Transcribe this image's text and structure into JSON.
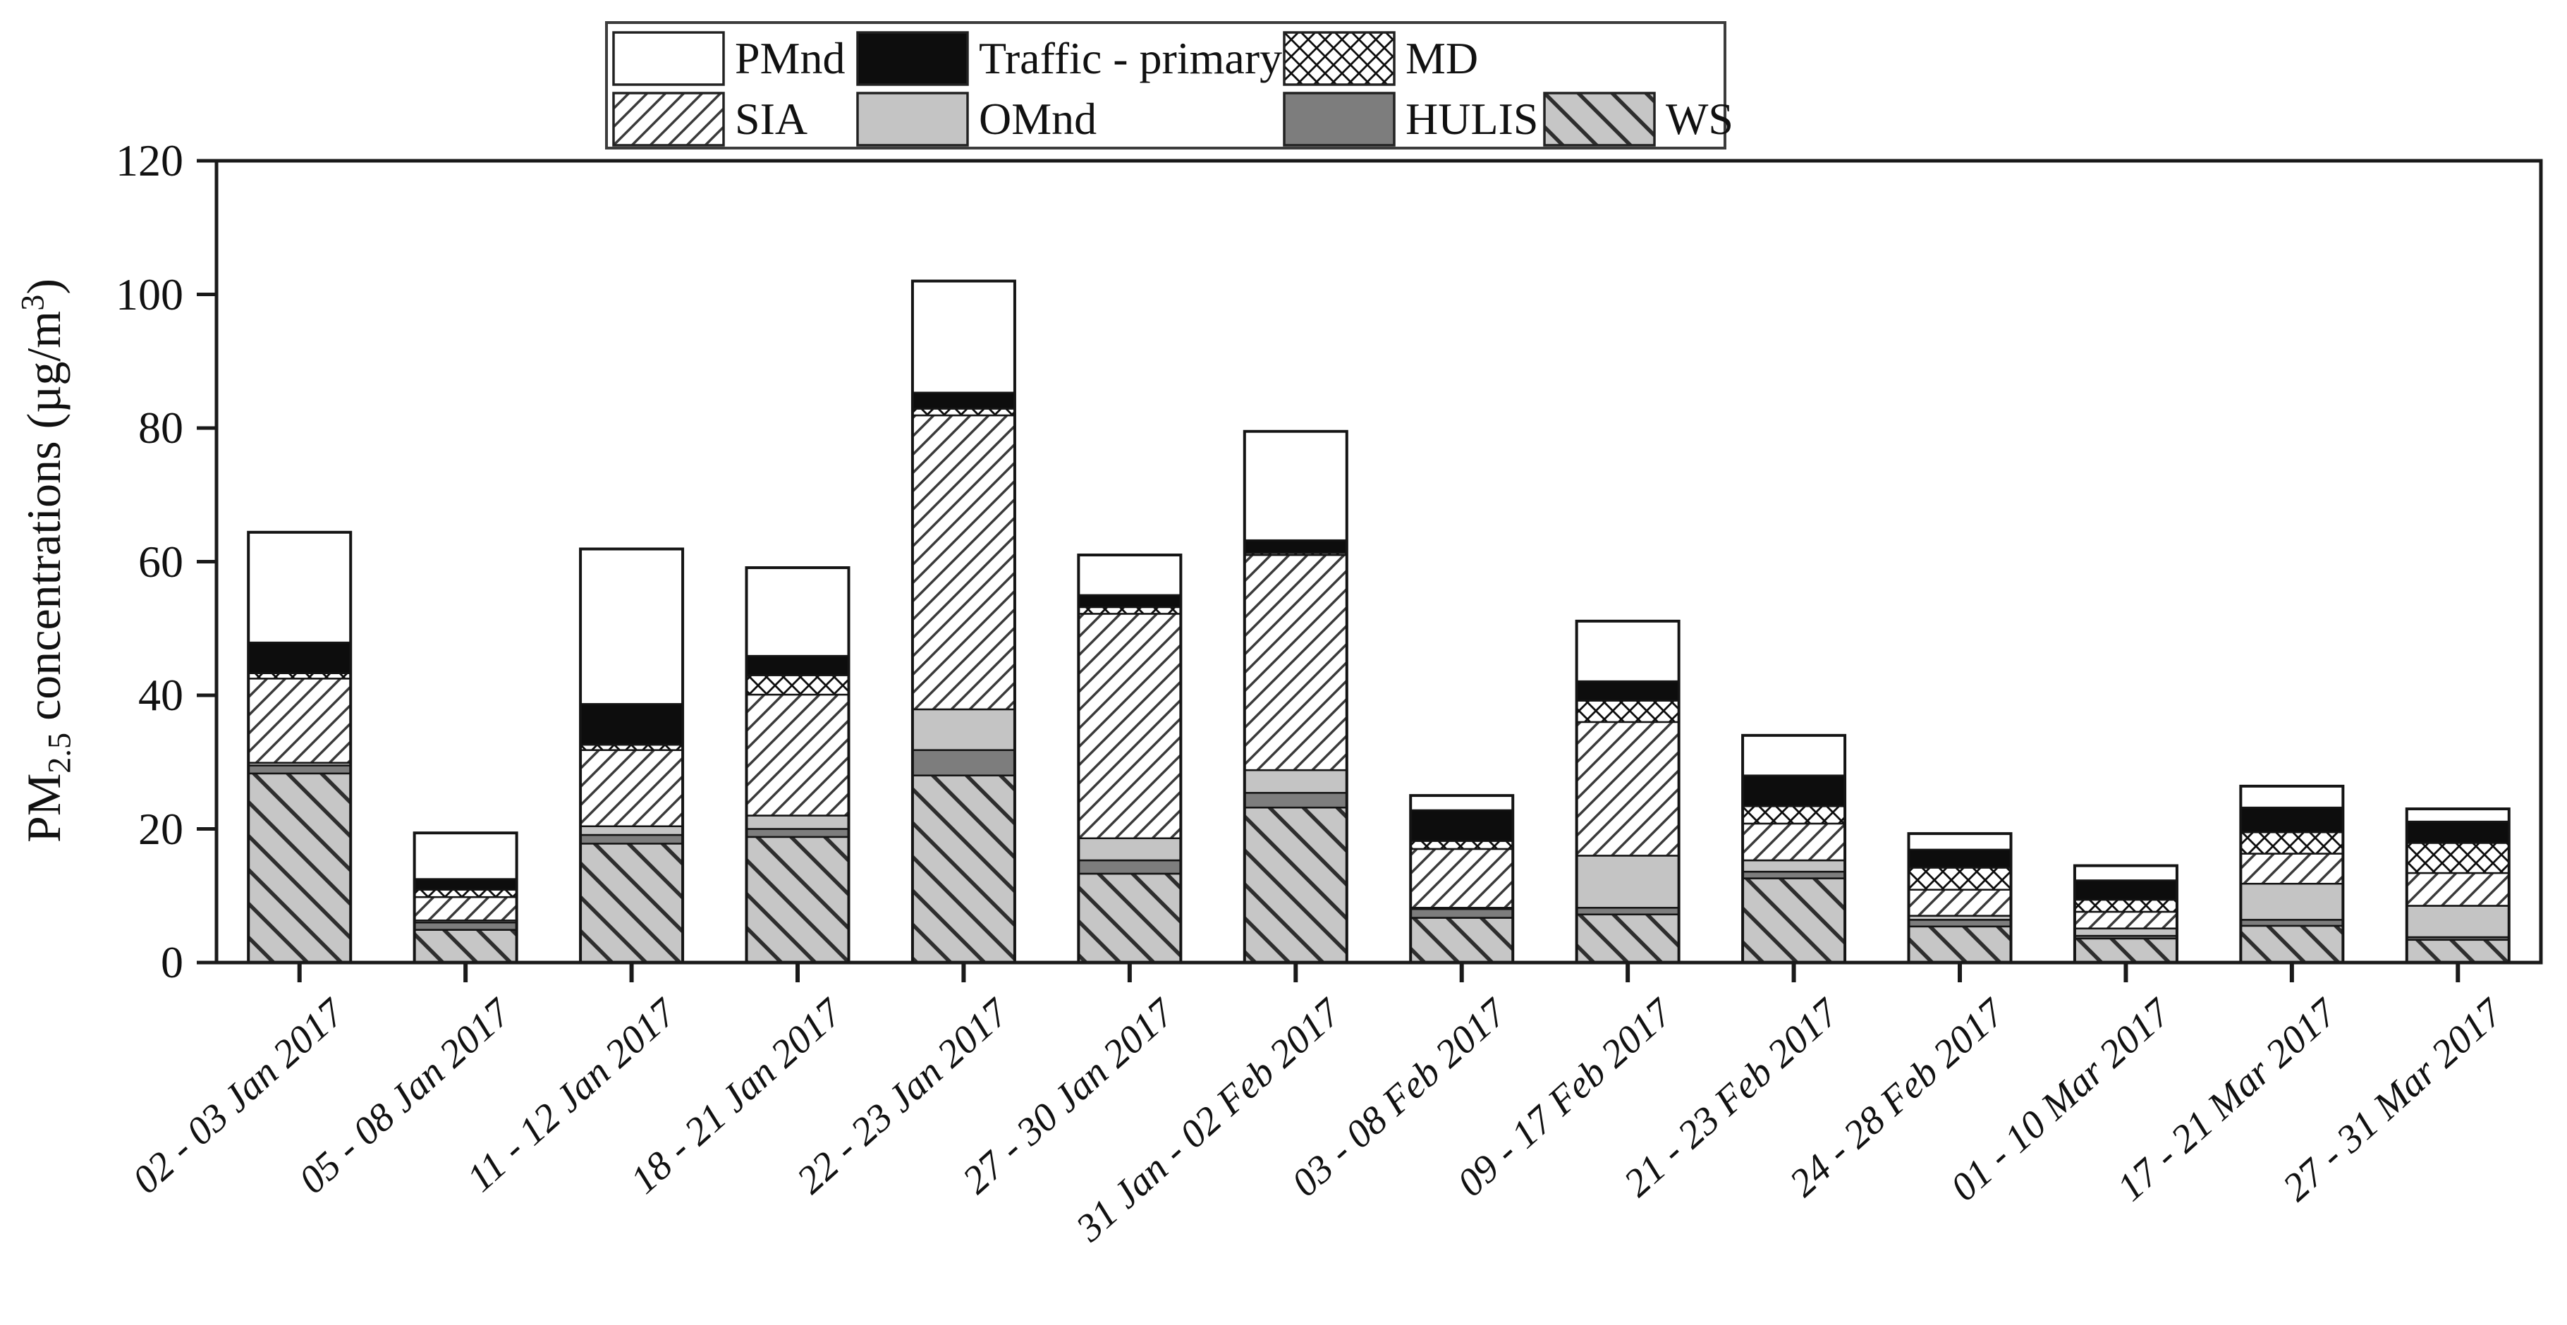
{
  "figure": {
    "background": "#ffffff",
    "frame_color": "#1a1a1a"
  },
  "chart_data": {
    "type": "bar",
    "stacked": true,
    "title": "",
    "xlabel": "",
    "ylabel": {
      "prefix": "PM",
      "sub": "2.5",
      "mid": " concentrations (µg/m",
      "sup": "3",
      "suffix": ")"
    },
    "ylim": [
      0,
      120
    ],
    "yticks": [
      0,
      20,
      40,
      60,
      80,
      100,
      120
    ],
    "grid": false,
    "legend_position": "top-center",
    "categories": [
      "02 - 03 Jan 2017",
      "05 - 08 Jan 2017",
      "11 - 12 Jan 2017",
      "18 - 21 Jan 2017",
      "22 - 23 Jan 2017",
      "27 - 30 Jan 2017",
      "31 Jan - 02 Feb 2017",
      "03 - 08 Feb 2017",
      "09 - 17 Feb 2017",
      "21 - 23 Feb 2017",
      "24 - 28 Feb 2017",
      "01 - 10 Mar 2017",
      "17 - 21 Mar 2017",
      "27 - 31 Mar 2017"
    ],
    "series": [
      {
        "name": "WS",
        "pattern": "ws-hatch",
        "values": [
          28.3,
          4.9,
          17.8,
          18.8,
          28.0,
          13.3,
          23.2,
          6.7,
          7.2,
          12.6,
          5.4,
          3.6,
          5.5,
          3.4
        ]
      },
      {
        "name": "HULIS",
        "pattern": "solid-darkgray",
        "values": [
          1.2,
          1.1,
          1.3,
          1.2,
          3.8,
          2.0,
          2.2,
          1.3,
          1.0,
          1.0,
          1.0,
          0.4,
          0.9,
          0.4
        ]
      },
      {
        "name": "OMnd",
        "pattern": "solid-lightgray",
        "values": [
          0.4,
          0.3,
          1.3,
          2.0,
          6.1,
          3.3,
          3.4,
          0.2,
          7.8,
          1.7,
          0.6,
          1.1,
          5.4,
          4.7
        ]
      },
      {
        "name": "SIA",
        "pattern": "sia-hatch",
        "values": [
          12.6,
          3.5,
          11.4,
          18.1,
          44.0,
          33.6,
          32.2,
          8.8,
          20.0,
          5.5,
          3.9,
          2.5,
          4.5,
          4.9
        ]
      },
      {
        "name": "MD",
        "pattern": "md-crosshatch",
        "values": [
          0.8,
          1.1,
          0.8,
          2.9,
          1.0,
          1.0,
          0.3,
          1.2,
          3.2,
          2.6,
          3.3,
          1.8,
          3.2,
          4.5
        ]
      },
      {
        "name": "Traffic - primary",
        "pattern": "solid-black",
        "values": [
          4.6,
          1.6,
          6.1,
          2.9,
          2.4,
          1.8,
          1.9,
          4.6,
          2.9,
          4.6,
          2.7,
          2.9,
          3.7,
          3.2
        ]
      },
      {
        "name": "PMnd",
        "pattern": "solid-white",
        "values": [
          16.5,
          6.9,
          23.2,
          13.2,
          16.7,
          6.0,
          16.3,
          2.2,
          9.0,
          6.0,
          2.4,
          2.2,
          3.2,
          1.9
        ]
      }
    ],
    "legend_order": [
      "PMnd",
      "Traffic - primary",
      "MD",
      "SIA",
      "OMnd",
      "HULIS",
      "WS"
    ],
    "colors": {
      "white": "#ffffff",
      "black": "#0d0d0d",
      "light_gray": "#c4c4c4",
      "dark_gray": "#7d7d7d",
      "ws_background": "#c6c6c6",
      "hatch_line": "#3a3a3a",
      "segment_border": "#141414",
      "frame": "#1a1a1a"
    }
  }
}
